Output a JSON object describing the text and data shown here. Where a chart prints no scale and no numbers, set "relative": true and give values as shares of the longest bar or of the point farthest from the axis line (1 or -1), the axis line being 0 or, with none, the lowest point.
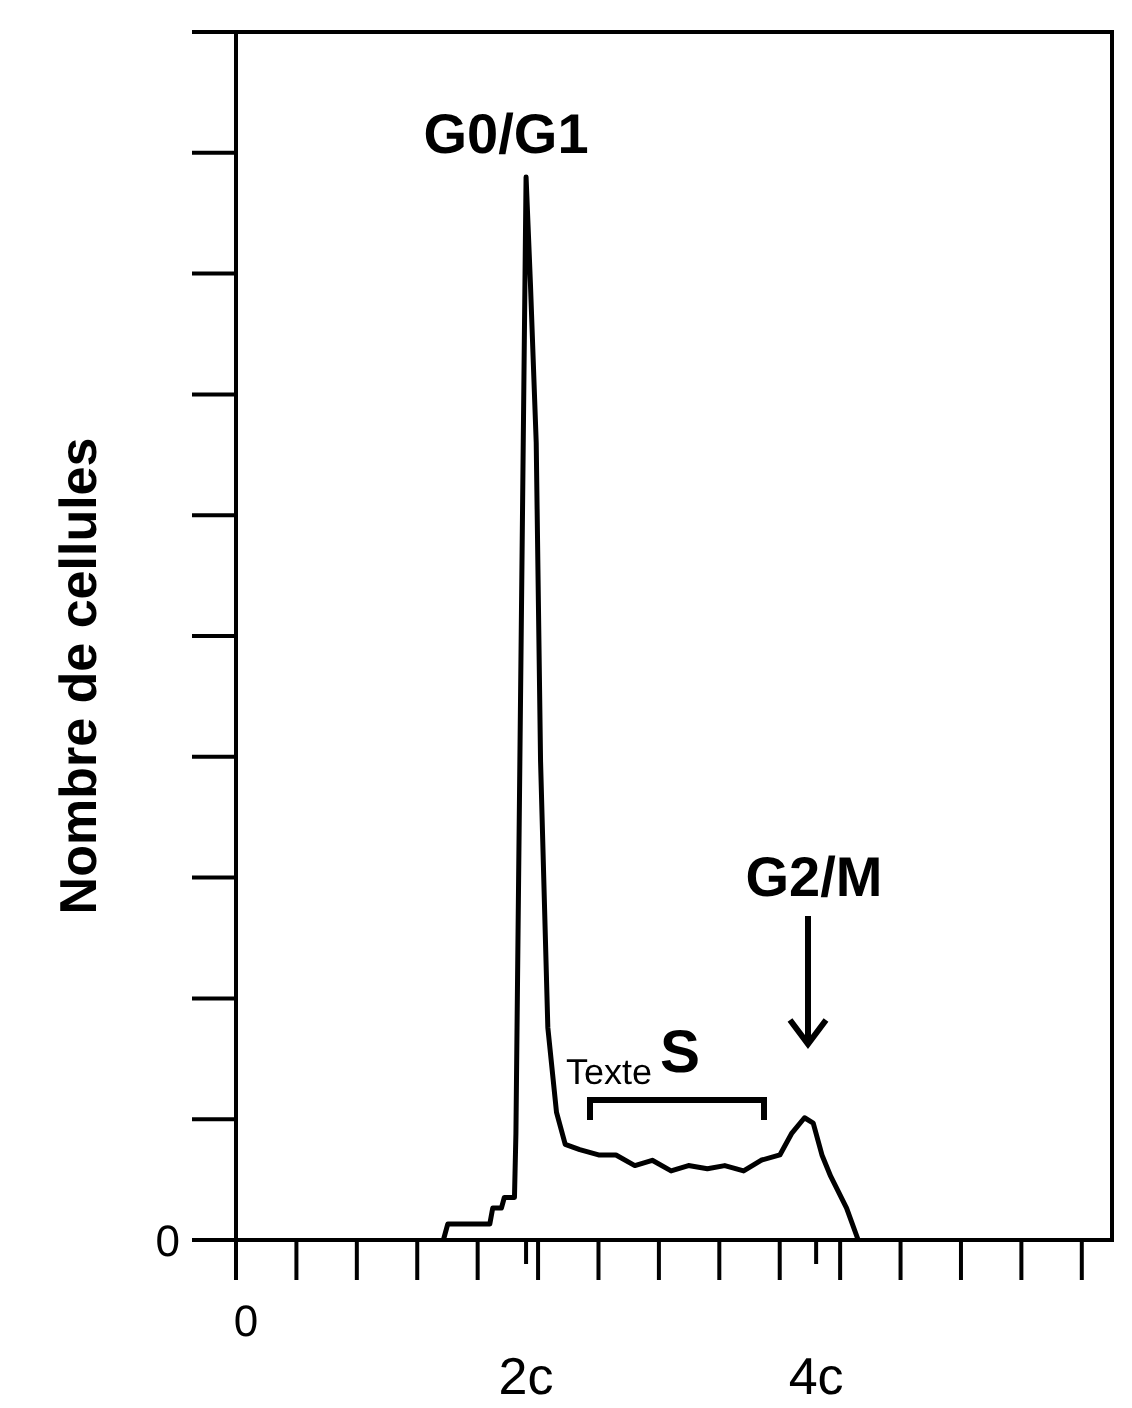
{
  "chart_data": {
    "type": "line",
    "relative": true,
    "ylabel": "Nombre de cellules",
    "x": [
      1.43,
      1.46,
      1.75,
      1.77,
      1.83,
      1.85,
      1.92,
      1.93,
      2.0,
      2.03,
      2.07,
      2.1,
      2.15,
      2.21,
      2.27,
      2.37,
      2.5,
      2.62,
      2.75,
      2.87,
      3.0,
      3.12,
      3.25,
      3.37,
      3.5,
      3.62,
      3.75,
      3.83,
      3.92,
      3.98,
      4.04,
      4.1,
      4.21,
      4.29
    ],
    "values": [
      0,
      0.015,
      0.015,
      0.03,
      0.03,
      0.04,
      0.04,
      0.1,
      1,
      0.9,
      0.75,
      0.45,
      0.2,
      0.12,
      0.09,
      0.085,
      0.08,
      0.08,
      0.07,
      0.075,
      0.065,
      0.07,
      0.067,
      0.07,
      0.065,
      0.075,
      0.08,
      0.1,
      0.115,
      0.11,
      0.08,
      0.06,
      0.03,
      0
    ],
    "color": "#000000",
    "line_style": "solid",
    "marker": "none",
    "xlim": [
      0,
      6.04
    ],
    "xticks": [
      {
        "value": 2,
        "label": "2c"
      },
      {
        "value": 4,
        "label": "4c"
      }
    ],
    "annotations": [
      {
        "text": "G0/G1",
        "x": 2.0,
        "y": 1
      },
      "S",
      "Texte",
      "0",
      "0",
      "G2/M"
    ]
  }
}
